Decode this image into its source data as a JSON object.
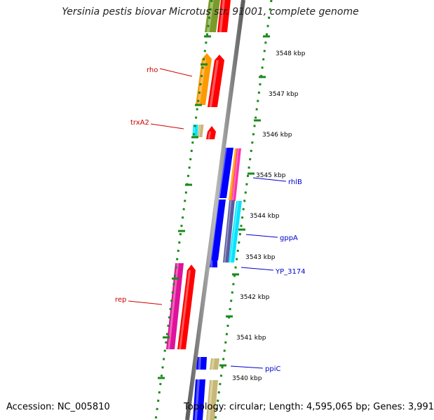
{
  "title": "Yersinia pestis biovar Microtus str. 91001, complete genome",
  "accession": "Accession: NC_005810",
  "topology": "Topology: circular; Length: 4,595,065 bp; Genes: 3,991",
  "ticks": [
    "3548 kbp",
    "3547 kbp",
    "3546 kbp",
    "3545 kbp",
    "3544 kbp",
    "3543 kbp",
    "3542 kbp",
    "3541 kbp",
    "3540 kbp"
  ],
  "left_labels": [
    "rho",
    "trxA2",
    "rep"
  ],
  "right_labels": [
    "rhlB",
    "gppA",
    "YP_3174",
    "ppiC"
  ],
  "colors": {
    "backbone": "#808080",
    "tick_marks": "#1a8a1a",
    "left_label": "#cc0000",
    "right_label": "#0000cc",
    "orange": "#ff9900",
    "red": "#ff0000",
    "olive": "#7a9a2a",
    "cyan": "#00e5ff",
    "tan": "#c8b878",
    "blue": "#0000ff",
    "slate": "#5a5aa0",
    "pink": "#ff33aa",
    "magenta": "#e0119a"
  }
}
